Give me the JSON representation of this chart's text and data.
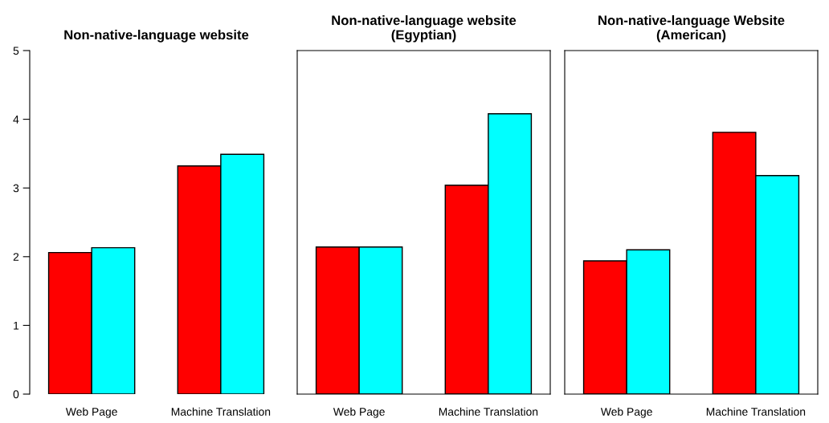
{
  "chart_data": [
    {
      "type": "bar",
      "title": "Non-native-language website",
      "categories": [
        "Web Page",
        "Machine Translation"
      ],
      "series": [
        {
          "color": "#ff0000",
          "values": [
            2.06,
            3.32
          ]
        },
        {
          "color": "#00ffff",
          "values": [
            2.13,
            3.49
          ]
        }
      ],
      "ylim": [
        0,
        5
      ],
      "yticks": [
        0,
        1,
        2,
        3,
        4,
        5
      ],
      "grid": false,
      "legend": false
    },
    {
      "type": "bar",
      "title": "Non-native-language website\n(Egyptian)",
      "categories": [
        "Web Page",
        "Machine Translation"
      ],
      "series": [
        {
          "color": "#ff0000",
          "values": [
            2.14,
            3.04
          ]
        },
        {
          "color": "#00ffff",
          "values": [
            2.14,
            4.08
          ]
        }
      ],
      "ylim": [
        0,
        5
      ],
      "yticks": [
        0,
        1,
        2,
        3,
        4,
        5
      ],
      "tick_labels": "x",
      "grid": false,
      "legend": false
    },
    {
      "type": "bar",
      "title": "Non-native-language Website\n(American)",
      "categories": [
        "Web Page",
        "Machine Translation"
      ],
      "series": [
        {
          "color": "#ff0000",
          "values": [
            1.94,
            3.81
          ]
        },
        {
          "color": "#00ffff",
          "values": [
            2.1,
            3.18
          ]
        }
      ],
      "ylim": [
        0,
        5
      ],
      "yticks": [
        0,
        1,
        2,
        3,
        4,
        5
      ],
      "tick_labels": "x",
      "grid": false,
      "legend": false
    }
  ]
}
